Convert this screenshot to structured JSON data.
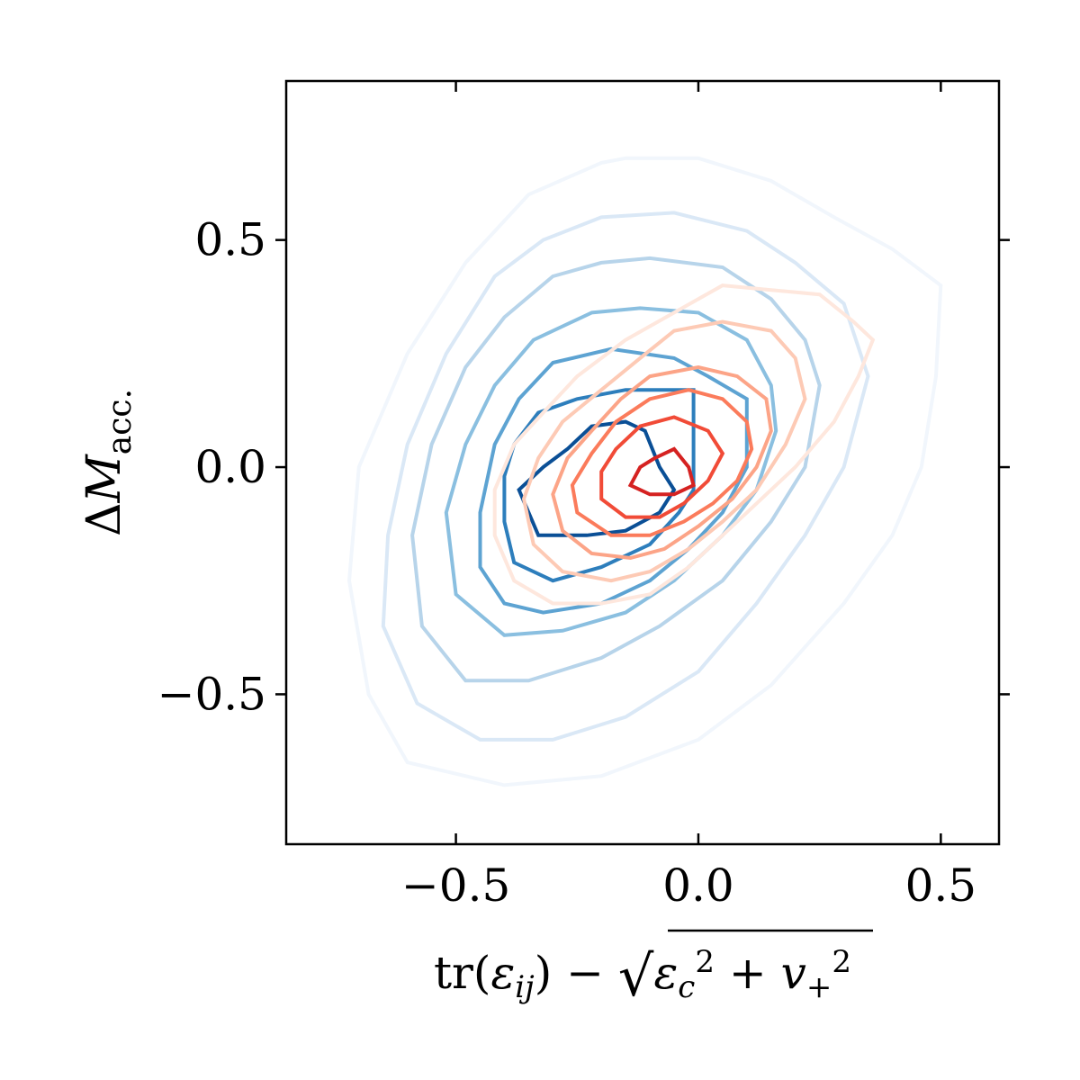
{
  "chart_data": {
    "type": "contour",
    "xlabel": {
      "prefix": "tr(",
      "eps": "ε",
      "eps_sub": "ij",
      "mid": ") − ",
      "eps2": "ε",
      "eps2_sub": "c",
      "eps2_sup": "2",
      "plus": " + ",
      "v": "v",
      "v_sub": "+",
      "v_sup": "2"
    },
    "ylabel": {
      "delta": "Δ",
      "m": "M",
      "sub": "acc."
    },
    "xlim": [
      -0.85,
      0.62
    ],
    "ylim": [
      -0.83,
      0.85
    ],
    "xticks": [
      -0.5,
      0.0,
      0.5
    ],
    "yticks": [
      -0.5,
      0.0,
      0.5
    ],
    "xtick_labels": [
      "−0.5",
      "0.0",
      "0.5"
    ],
    "ytick_labels": [
      "−0.5",
      "0.0",
      "0.5"
    ],
    "series": [
      {
        "colors": [
          "#f1f6fc",
          "#dae8f6",
          "#b7d4ea",
          "#8abfe0",
          "#5da3d2",
          "#2d7ebc",
          "#0a4f96"
        ],
        "levels": [
          [
            [
              -0.15,
              0.68
            ],
            [
              0.0,
              0.68
            ],
            [
              0.15,
              0.63
            ],
            [
              0.28,
              0.55
            ],
            [
              0.4,
              0.48
            ],
            [
              0.5,
              0.4
            ],
            [
              0.49,
              0.2
            ],
            [
              0.46,
              0.0
            ],
            [
              0.4,
              -0.15
            ],
            [
              0.3,
              -0.3
            ],
            [
              0.15,
              -0.48
            ],
            [
              0.0,
              -0.6
            ],
            [
              -0.2,
              -0.68
            ],
            [
              -0.4,
              -0.7
            ],
            [
              -0.6,
              -0.65
            ],
            [
              -0.68,
              -0.5
            ],
            [
              -0.72,
              -0.25
            ],
            [
              -0.7,
              0.0
            ],
            [
              -0.6,
              0.25
            ],
            [
              -0.48,
              0.45
            ],
            [
              -0.35,
              0.6
            ],
            [
              -0.2,
              0.67
            ]
          ],
          [
            [
              -0.2,
              0.55
            ],
            [
              -0.05,
              0.56
            ],
            [
              0.1,
              0.52
            ],
            [
              0.2,
              0.45
            ],
            [
              0.3,
              0.36
            ],
            [
              0.35,
              0.2
            ],
            [
              0.3,
              0.0
            ],
            [
              0.22,
              -0.15
            ],
            [
              0.12,
              -0.3
            ],
            [
              0.0,
              -0.45
            ],
            [
              -0.15,
              -0.55
            ],
            [
              -0.3,
              -0.6
            ],
            [
              -0.45,
              -0.6
            ],
            [
              -0.58,
              -0.52
            ],
            [
              -0.65,
              -0.35
            ],
            [
              -0.64,
              -0.15
            ],
            [
              -0.6,
              0.05
            ],
            [
              -0.52,
              0.25
            ],
            [
              -0.42,
              0.42
            ],
            [
              -0.32,
              0.5
            ]
          ],
          [
            [
              -0.2,
              0.45
            ],
            [
              -0.1,
              0.46
            ],
            [
              0.05,
              0.44
            ],
            [
              0.15,
              0.37
            ],
            [
              0.22,
              0.28
            ],
            [
              0.25,
              0.18
            ],
            [
              0.22,
              0.0
            ],
            [
              0.15,
              -0.12
            ],
            [
              0.05,
              -0.25
            ],
            [
              -0.08,
              -0.35
            ],
            [
              -0.2,
              -0.42
            ],
            [
              -0.35,
              -0.47
            ],
            [
              -0.48,
              -0.47
            ],
            [
              -0.57,
              -0.35
            ],
            [
              -0.59,
              -0.15
            ],
            [
              -0.55,
              0.05
            ],
            [
              -0.48,
              0.22
            ],
            [
              -0.4,
              0.33
            ],
            [
              -0.3,
              0.42
            ]
          ],
          [
            [
              -0.22,
              0.34
            ],
            [
              -0.12,
              0.35
            ],
            [
              0.0,
              0.34
            ],
            [
              0.1,
              0.28
            ],
            [
              0.15,
              0.18
            ],
            [
              0.16,
              0.08
            ],
            [
              0.12,
              -0.05
            ],
            [
              0.05,
              -0.15
            ],
            [
              -0.05,
              -0.25
            ],
            [
              -0.15,
              -0.32
            ],
            [
              -0.28,
              -0.36
            ],
            [
              -0.4,
              -0.37
            ],
            [
              -0.5,
              -0.28
            ],
            [
              -0.52,
              -0.1
            ],
            [
              -0.48,
              0.05
            ],
            [
              -0.42,
              0.18
            ],
            [
              -0.34,
              0.28
            ]
          ],
          [
            [
              -0.3,
              0.23
            ],
            [
              -0.18,
              0.26
            ],
            [
              -0.05,
              0.24
            ],
            [
              0.02,
              0.2
            ],
            [
              0.1,
              0.15
            ],
            [
              0.1,
              0.0
            ],
            [
              0.05,
              -0.1
            ],
            [
              -0.02,
              -0.18
            ],
            [
              -0.1,
              -0.25
            ],
            [
              -0.2,
              -0.3
            ],
            [
              -0.32,
              -0.32
            ],
            [
              -0.4,
              -0.3
            ],
            [
              -0.45,
              -0.22
            ],
            [
              -0.45,
              -0.1
            ],
            [
              -0.42,
              0.05
            ],
            [
              -0.37,
              0.15
            ]
          ],
          [
            [
              -0.33,
              0.12
            ],
            [
              -0.25,
              0.15
            ],
            [
              -0.15,
              0.17
            ],
            [
              -0.01,
              0.17
            ],
            [
              -0.01,
              0.07
            ],
            [
              -0.01,
              -0.05
            ],
            [
              -0.04,
              -0.1
            ],
            [
              -0.1,
              -0.17
            ],
            [
              -0.2,
              -0.22
            ],
            [
              -0.3,
              -0.25
            ],
            [
              -0.38,
              -0.21
            ],
            [
              -0.4,
              -0.12
            ],
            [
              -0.4,
              -0.02
            ],
            [
              -0.38,
              0.05
            ]
          ],
          [
            [
              -0.32,
              0.0
            ],
            [
              -0.27,
              0.04
            ],
            [
              -0.22,
              0.09
            ],
            [
              -0.15,
              0.1
            ],
            [
              -0.11,
              0.08
            ],
            [
              -0.08,
              0.0
            ],
            [
              -0.05,
              -0.05
            ],
            [
              -0.08,
              -0.1
            ],
            [
              -0.15,
              -0.14
            ],
            [
              -0.23,
              -0.15
            ],
            [
              -0.33,
              -0.15
            ],
            [
              -0.37,
              -0.05
            ]
          ]
        ]
      },
      {
        "colors": [
          "#fee7dd",
          "#fdcab5",
          "#fca487",
          "#fb7b5b",
          "#f14b37",
          "#d52221",
          "#ae1117"
        ],
        "levels": [
          [
            [
              0.05,
              0.4
            ],
            [
              0.15,
              0.39
            ],
            [
              0.25,
              0.38
            ],
            [
              0.32,
              0.32
            ],
            [
              0.36,
              0.28
            ],
            [
              0.33,
              0.2
            ],
            [
              0.28,
              0.1
            ],
            [
              0.2,
              0.0
            ],
            [
              0.12,
              -0.08
            ],
            [
              0.05,
              -0.15
            ],
            [
              -0.02,
              -0.22
            ],
            [
              -0.1,
              -0.28
            ],
            [
              -0.2,
              -0.3
            ],
            [
              -0.3,
              -0.3
            ],
            [
              -0.38,
              -0.25
            ],
            [
              -0.42,
              -0.15
            ],
            [
              -0.42,
              -0.05
            ],
            [
              -0.38,
              0.05
            ],
            [
              -0.32,
              0.12
            ],
            [
              -0.25,
              0.2
            ],
            [
              -0.15,
              0.28
            ],
            [
              -0.05,
              0.34
            ]
          ],
          [
            [
              -0.05,
              0.3
            ],
            [
              0.05,
              0.32
            ],
            [
              0.15,
              0.3
            ],
            [
              0.2,
              0.24
            ],
            [
              0.22,
              0.15
            ],
            [
              0.18,
              0.05
            ],
            [
              0.12,
              -0.05
            ],
            [
              0.05,
              -0.12
            ],
            [
              -0.02,
              -0.18
            ],
            [
              -0.1,
              -0.23
            ],
            [
              -0.18,
              -0.25
            ],
            [
              -0.28,
              -0.23
            ],
            [
              -0.34,
              -0.17
            ],
            [
              -0.36,
              -0.07
            ],
            [
              -0.33,
              0.02
            ],
            [
              -0.28,
              0.1
            ],
            [
              -0.2,
              0.17
            ],
            [
              -0.12,
              0.24
            ]
          ],
          [
            [
              -0.1,
              0.2
            ],
            [
              0.0,
              0.22
            ],
            [
              0.08,
              0.2
            ],
            [
              0.14,
              0.15
            ],
            [
              0.15,
              0.08
            ],
            [
              0.12,
              0.0
            ],
            [
              0.07,
              -0.07
            ],
            [
              0.0,
              -0.13
            ],
            [
              -0.07,
              -0.18
            ],
            [
              -0.14,
              -0.2
            ],
            [
              -0.22,
              -0.19
            ],
            [
              -0.28,
              -0.14
            ],
            [
              -0.3,
              -0.06
            ],
            [
              -0.27,
              0.02
            ],
            [
              -0.22,
              0.08
            ],
            [
              -0.16,
              0.15
            ]
          ],
          [
            [
              -0.1,
              0.15
            ],
            [
              -0.02,
              0.17
            ],
            [
              0.05,
              0.15
            ],
            [
              0.1,
              0.1
            ],
            [
              0.11,
              0.04
            ],
            [
              0.08,
              -0.03
            ],
            [
              0.03,
              -0.08
            ],
            [
              -0.03,
              -0.12
            ],
            [
              -0.1,
              -0.15
            ],
            [
              -0.18,
              -0.15
            ],
            [
              -0.25,
              -0.1
            ],
            [
              -0.26,
              -0.04
            ],
            [
              -0.22,
              0.03
            ],
            [
              -0.17,
              0.1
            ]
          ],
          [
            [
              -0.12,
              0.09
            ],
            [
              -0.05,
              0.11
            ],
            [
              0.02,
              0.08
            ],
            [
              0.05,
              0.03
            ],
            [
              0.02,
              -0.03
            ],
            [
              -0.03,
              -0.08
            ],
            [
              -0.08,
              -0.11
            ],
            [
              -0.15,
              -0.11
            ],
            [
              -0.2,
              -0.07
            ],
            [
              -0.2,
              -0.01
            ],
            [
              -0.17,
              0.04
            ]
          ],
          [
            [
              -0.09,
              0.02
            ],
            [
              -0.05,
              0.04
            ],
            [
              -0.02,
              0.0
            ],
            [
              -0.01,
              -0.04
            ],
            [
              -0.05,
              -0.06
            ],
            [
              -0.1,
              -0.06
            ],
            [
              -0.14,
              -0.04
            ],
            [
              -0.12,
              0.0
            ]
          ]
        ]
      }
    ]
  }
}
